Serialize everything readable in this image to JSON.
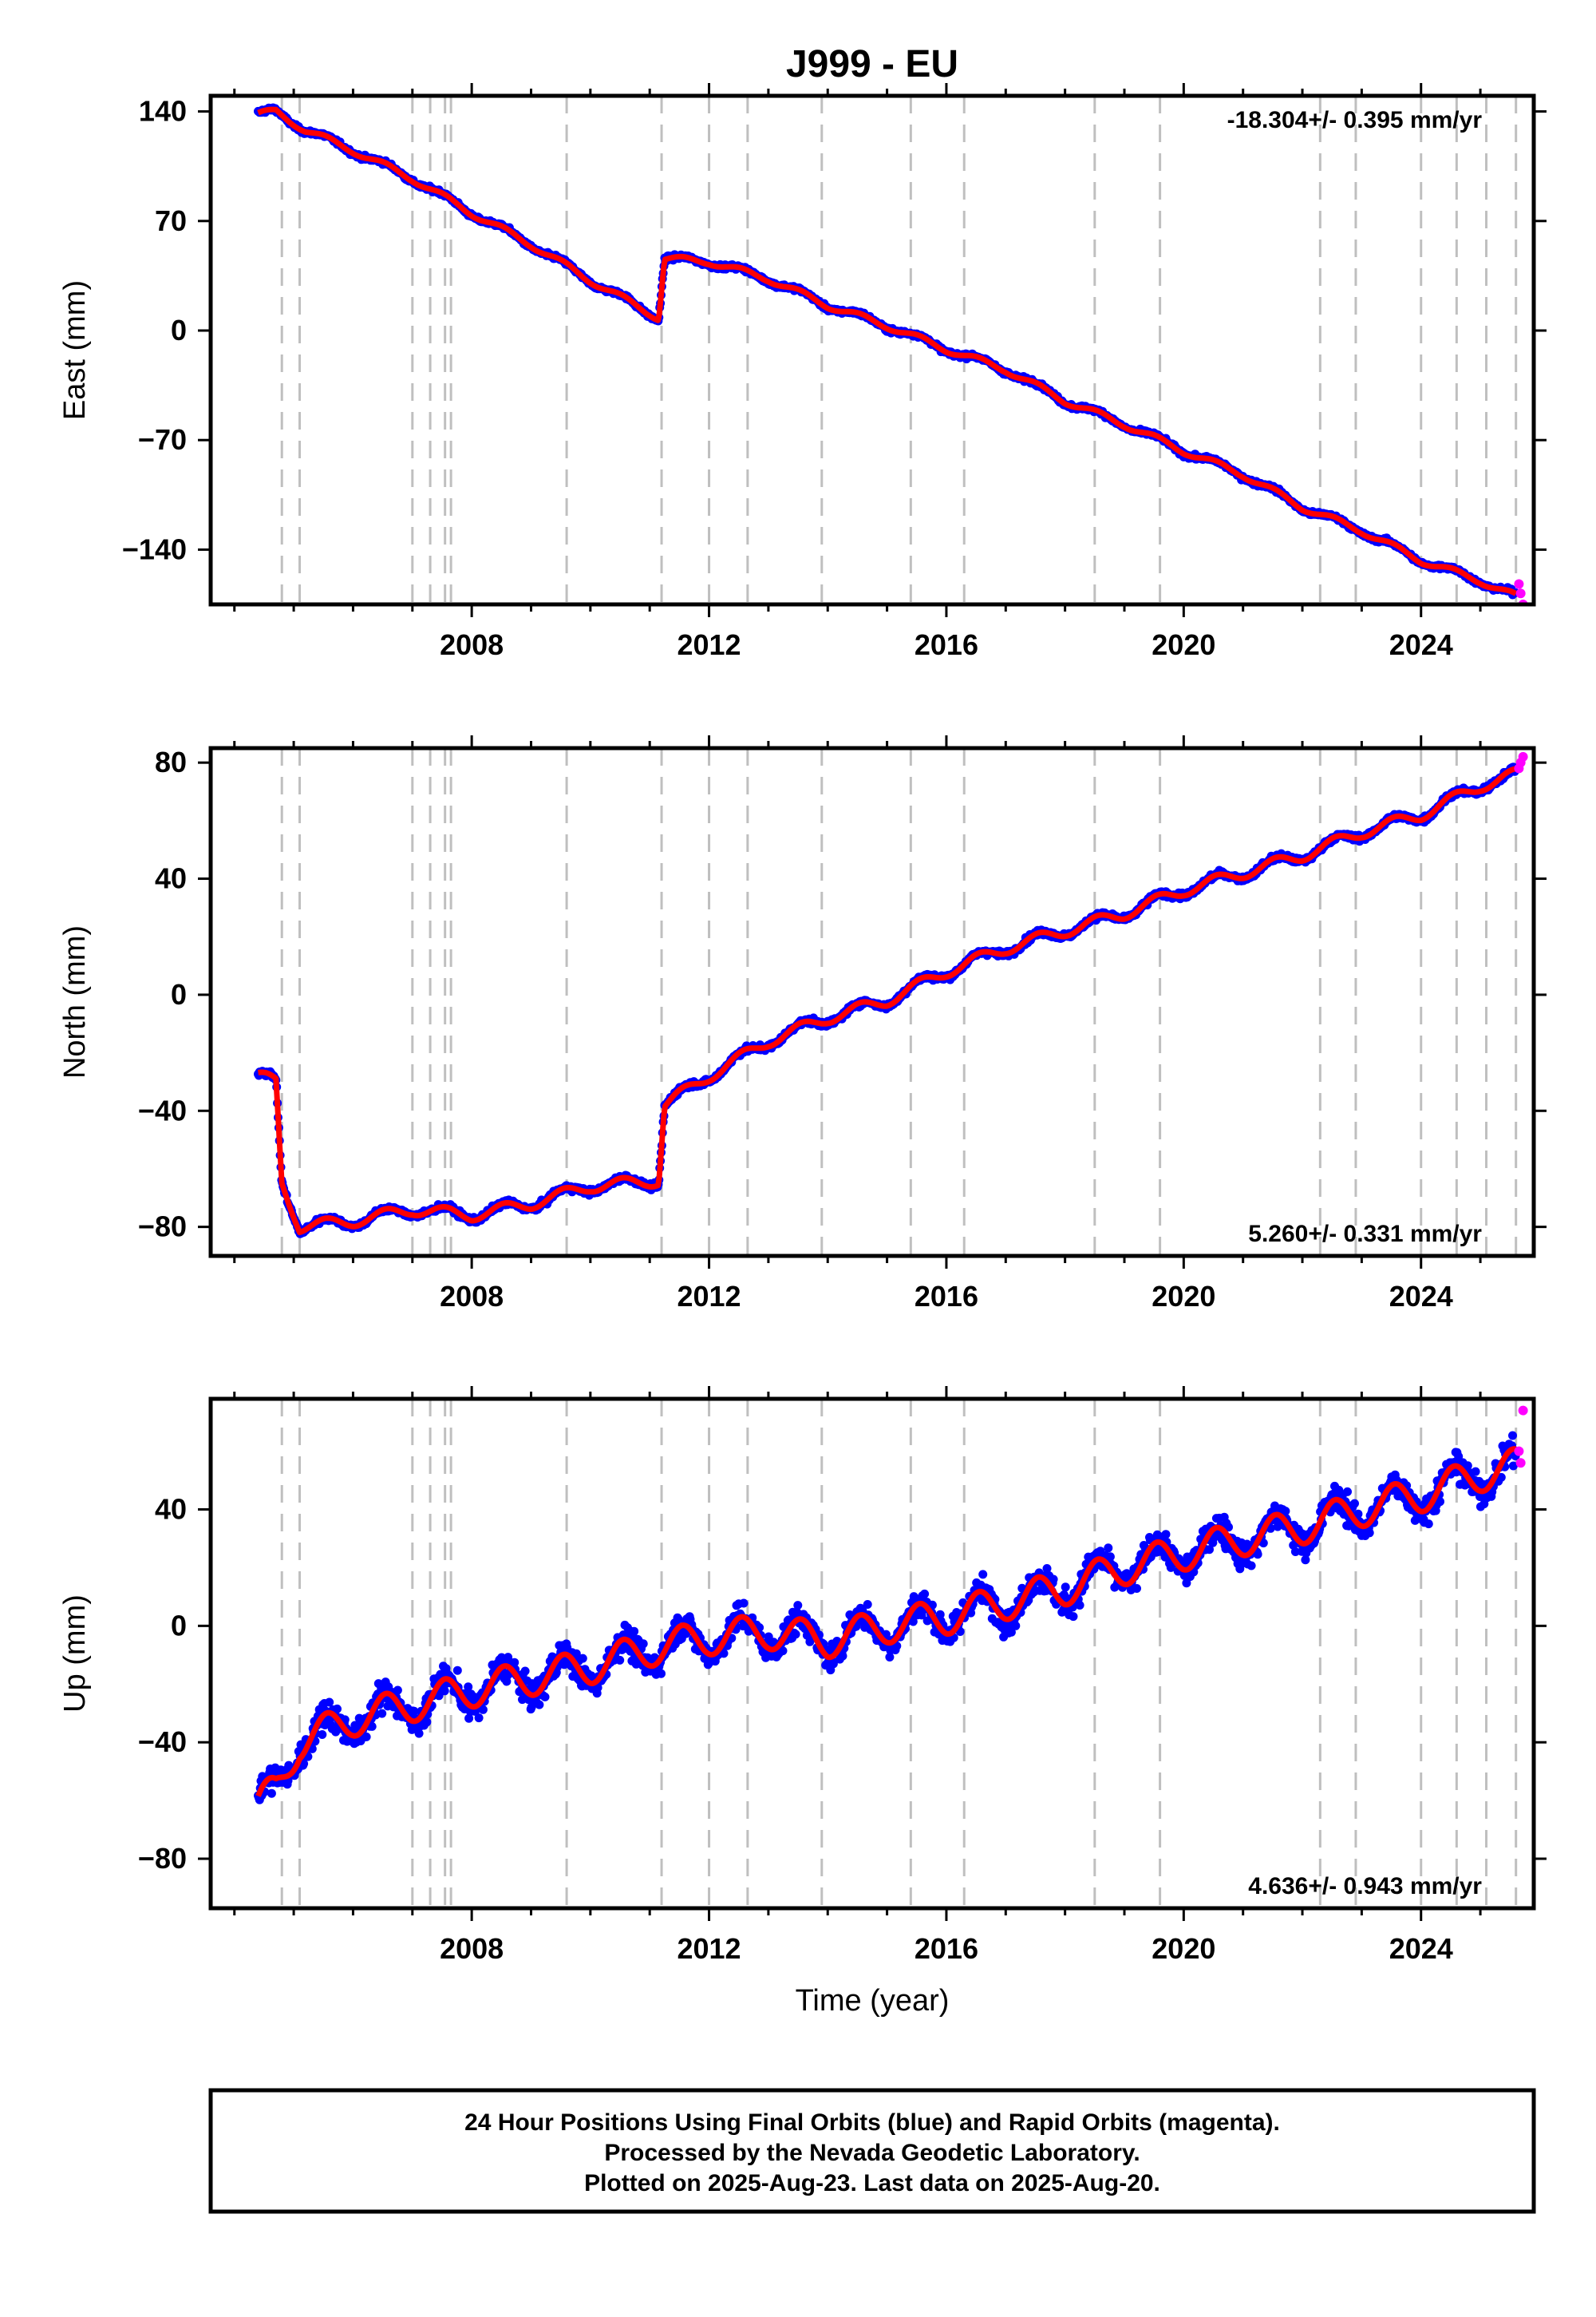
{
  "title": "J999 - EU",
  "xlabel": "Time (year)",
  "footer": {
    "line1": "24 Hour Positions Using Final Orbits (blue) and Rapid Orbits (magenta).",
    "line2": "Processed by the Nevada Geodetic Laboratory.",
    "line3": "Plotted on 2025-Aug-23. Last data on 2025-Aug-20."
  },
  "colors": {
    "final": "#0000ff",
    "rapid": "#ff00ff",
    "model": "#ff0000",
    "event_lines": "#bfbfbf",
    "frame": "#000000"
  },
  "chart_data": [
    {
      "type": "scatter",
      "panel": "east",
      "ylabel": "East (mm)",
      "rate": "-18.304+/- 0.395 mm/yr",
      "xlim": [
        2003.6,
        2025.9
      ],
      "ylim": [
        -175,
        150
      ],
      "xticks": [
        2008,
        2012,
        2016,
        2020,
        2024
      ],
      "yticks": [
        140,
        70,
        0,
        -70,
        -140
      ],
      "series": [
        {
          "kind": "final",
          "x": [
            2004.4,
            2004.7,
            2005.2,
            2006.0,
            2007.0,
            2008.0,
            2009.0,
            2010.0,
            2011.15,
            2011.25,
            2012.0,
            2013.0,
            2014.0,
            2015.0,
            2016.0,
            2017.0,
            2018.0,
            2019.0,
            2020.0,
            2021.0,
            2022.0,
            2023.0,
            2024.0,
            2025.0,
            2025.6
          ],
          "y": [
            138,
            140,
            128,
            115,
            97,
            75,
            55,
            32,
            8,
            46,
            44,
            33,
            16,
            3,
            -12,
            -25,
            -45,
            -60,
            -77,
            -92,
            -113,
            -128,
            -147,
            -160,
            -170
          ]
        },
        {
          "kind": "rapid",
          "x": [
            2025.65,
            2025.68,
            2025.72
          ],
          "y": [
            -162,
            -168,
            -175
          ]
        }
      ],
      "events": [
        2004.8,
        2005.1,
        2007.0,
        2007.3,
        2007.55,
        2007.65,
        2009.6,
        2011.2,
        2012.0,
        2012.65,
        2013.9,
        2015.4,
        2016.3,
        2018.5,
        2019.6,
        2022.3,
        2022.9,
        2024.0,
        2024.6,
        2025.1,
        2025.6
      ]
    },
    {
      "type": "scatter",
      "panel": "north",
      "ylabel": "North (mm)",
      "rate": "5.260+/- 0.331 mm/yr",
      "xlim": [
        2003.6,
        2025.9
      ],
      "ylim": [
        -90,
        85
      ],
      "xticks": [
        2008,
        2012,
        2016,
        2020,
        2024
      ],
      "yticks": [
        80,
        40,
        0,
        -40,
        -80
      ],
      "series": [
        {
          "kind": "final",
          "x": [
            2004.4,
            2004.7,
            2004.8,
            2005.1,
            2006.0,
            2007.0,
            2008.0,
            2009.0,
            2010.0,
            2011.15,
            2011.25,
            2012.0,
            2013.0,
            2014.0,
            2015.0,
            2016.0,
            2017.0,
            2018.0,
            2019.0,
            2020.0,
            2021.0,
            2022.0,
            2023.0,
            2024.0,
            2025.0,
            2025.6
          ],
          "y": [
            -28,
            -30,
            -65,
            -80,
            -78,
            -74,
            -76,
            -72,
            -66,
            -64,
            -38,
            -28,
            -16,
            -8,
            -2,
            8,
            16,
            22,
            28,
            36,
            42,
            48,
            56,
            62,
            72,
            76
          ]
        },
        {
          "kind": "rapid",
          "x": [
            2025.65,
            2025.68,
            2025.72
          ],
          "y": [
            78,
            80,
            82
          ]
        }
      ],
      "events": [
        2004.8,
        2005.1,
        2007.0,
        2007.3,
        2007.55,
        2007.65,
        2009.6,
        2011.2,
        2012.0,
        2012.65,
        2013.9,
        2015.4,
        2016.3,
        2018.5,
        2019.6,
        2022.3,
        2022.9,
        2024.0,
        2024.6,
        2025.1,
        2025.6
      ]
    },
    {
      "type": "scatter",
      "panel": "up",
      "ylabel": "Up (mm)",
      "rate": "4.636+/- 0.943 mm/yr",
      "xlim": [
        2003.6,
        2025.9
      ],
      "ylim": [
        -97,
        78
      ],
      "xticks": [
        2008,
        2012,
        2016,
        2020,
        2024
      ],
      "yticks": [
        40,
        0,
        -40,
        -80
      ],
      "series": [
        {
          "kind": "final",
          "x": [
            2004.4,
            2004.7,
            2005.1,
            2006.0,
            2007.0,
            2008.0,
            2009.0,
            2010.0,
            2011.0,
            2012.0,
            2013.0,
            2014.0,
            2015.0,
            2016.0,
            2017.0,
            2018.0,
            2019.0,
            2020.0,
            2021.0,
            2022.0,
            2023.0,
            2024.0,
            2025.0,
            2025.6
          ],
          "y": [
            -62,
            -56,
            -40,
            -32,
            -27,
            -22,
            -18,
            -14,
            -8,
            -4,
            -2,
            -5,
            0,
            3,
            8,
            13,
            20,
            25,
            30,
            34,
            40,
            45,
            52,
            55
          ]
        },
        {
          "kind": "rapid",
          "x": [
            2025.65,
            2025.68,
            2025.72
          ],
          "y": [
            60,
            56,
            74
          ]
        }
      ],
      "events": [
        2004.8,
        2005.1,
        2007.0,
        2007.3,
        2007.55,
        2007.65,
        2009.6,
        2011.2,
        2012.0,
        2012.65,
        2013.9,
        2015.4,
        2016.3,
        2018.5,
        2019.6,
        2022.3,
        2022.9,
        2024.0,
        2024.6,
        2025.1,
        2025.6
      ]
    }
  ]
}
